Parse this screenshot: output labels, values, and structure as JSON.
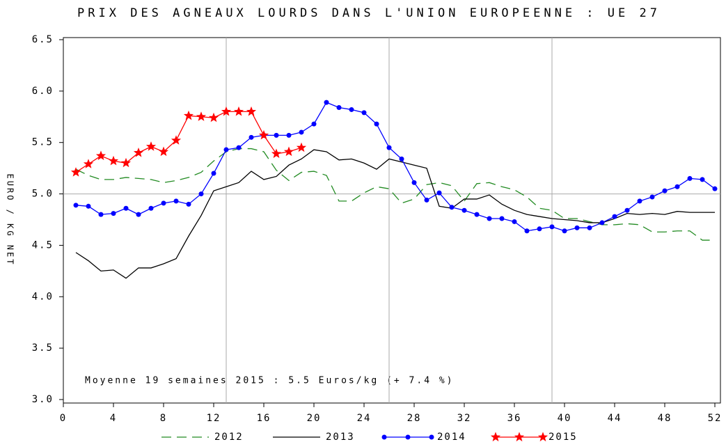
{
  "chart_data": {
    "type": "line",
    "title": "PRIX DES AGNEAUX LOURDS DANS L'UNION EUROPEENNE : UE 27",
    "y_label": "EURO / KG NET",
    "annotation": "Moyenne 19 semaines 2015 : 5.5 Euros/kg (+ 7.4 %)",
    "annotation_color": "#ff0000",
    "xlim": [
      0,
      52.4
    ],
    "xticks": [
      0,
      4,
      8,
      12,
      16,
      20,
      24,
      28,
      32,
      36,
      40,
      44,
      48,
      52
    ],
    "ylim": [
      3.0,
      6.5
    ],
    "yticks": [
      {
        "value": 3,
        "label": "3.0"
      },
      {
        "value": 3.5,
        "label": "3.5"
      },
      {
        "value": 4,
        "label": "4.0"
      },
      {
        "value": 4.5,
        "label": "4.5"
      },
      {
        "value": 5,
        "label": "5.0"
      },
      {
        "value": 5.5,
        "label": "5.5"
      },
      {
        "value": 6,
        "label": "6.0"
      },
      {
        "value": 6.5,
        "label": "6.5"
      }
    ],
    "grid_x": [
      13,
      26,
      39
    ],
    "grid_y": [
      5
    ],
    "x": [
      1,
      2,
      3,
      4,
      5,
      6,
      7,
      8,
      9,
      10,
      11,
      12,
      13,
      14,
      15,
      16,
      17,
      18,
      19,
      20,
      21,
      22,
      23,
      24,
      25,
      26,
      27,
      28,
      29,
      30,
      31,
      32,
      33,
      34,
      35,
      36,
      37,
      38,
      39,
      40,
      41,
      42,
      43,
      44,
      45,
      46,
      47,
      48,
      49,
      50,
      51,
      52
    ],
    "series": [
      {
        "name": "2012",
        "color": "#228b22",
        "dash": true,
        "marker": null,
        "values": [
          5.24,
          5.18,
          5.14,
          5.14,
          5.16,
          5.15,
          5.14,
          5.11,
          5.13,
          5.16,
          5.21,
          5.32,
          5.41,
          5.44,
          5.44,
          5.41,
          5.23,
          5.13,
          5.21,
          5.22,
          5.18,
          4.93,
          4.93,
          5.01,
          5.07,
          5.05,
          4.91,
          4.95,
          5.09,
          5.11,
          5.08,
          4.93,
          5.1,
          5.11,
          5.07,
          5.04,
          4.97,
          4.86,
          4.84,
          4.76,
          4.76,
          4.73,
          4.7,
          4.7,
          4.71,
          4.7,
          4.63,
          4.63,
          4.64,
          4.64,
          4.55,
          4.55
        ]
      },
      {
        "name": "2013",
        "color": "#000000",
        "dash": false,
        "marker": null,
        "values": [
          4.43,
          4.35,
          4.25,
          4.26,
          4.18,
          4.28,
          4.28,
          4.32,
          4.37,
          4.59,
          4.79,
          5.03,
          5.07,
          5.11,
          5.22,
          5.14,
          5.17,
          5.28,
          5.34,
          5.43,
          5.41,
          5.33,
          5.34,
          5.3,
          5.24,
          5.34,
          5.31,
          5.28,
          5.25,
          4.88,
          4.86,
          4.95,
          4.95,
          4.99,
          4.9,
          4.84,
          4.8,
          4.78,
          4.76,
          4.75,
          4.74,
          4.72,
          4.72,
          4.76,
          4.81,
          4.8,
          4.81,
          4.8,
          4.83,
          4.82,
          4.82,
          4.82
        ]
      },
      {
        "name": "2014",
        "color": "#0000ff",
        "dash": false,
        "marker": "circle",
        "values": [
          4.89,
          4.88,
          4.8,
          4.81,
          4.86,
          4.8,
          4.86,
          4.91,
          4.93,
          4.9,
          5.0,
          5.2,
          5.43,
          5.45,
          5.55,
          5.57,
          5.57,
          5.57,
          5.6,
          5.68,
          5.89,
          5.84,
          5.82,
          5.79,
          5.68,
          5.45,
          5.34,
          5.11,
          4.94,
          5.01,
          4.87,
          4.84,
          4.8,
          4.76,
          4.76,
          4.73,
          4.64,
          4.66,
          4.68,
          4.64,
          4.67,
          4.67,
          4.72,
          4.78,
          4.84,
          4.93,
          4.97,
          5.03,
          5.07,
          5.15,
          5.14,
          5.05
        ]
      },
      {
        "name": "2015",
        "color": "#ff0000",
        "dash": false,
        "marker": "star",
        "values": [
          5.21,
          5.29,
          5.37,
          5.32,
          5.3,
          5.4,
          5.46,
          5.41,
          5.52,
          5.76,
          5.75,
          5.74,
          5.8,
          5.8,
          5.8,
          5.57,
          5.39,
          5.41,
          5.45,
          null,
          null,
          null,
          null,
          null,
          null,
          null,
          null,
          null,
          null,
          null,
          null,
          null,
          null,
          null,
          null,
          null,
          null,
          null,
          null,
          null,
          null,
          null,
          null,
          null,
          null,
          null,
          null,
          null,
          null,
          null,
          null,
          null
        ]
      }
    ]
  }
}
